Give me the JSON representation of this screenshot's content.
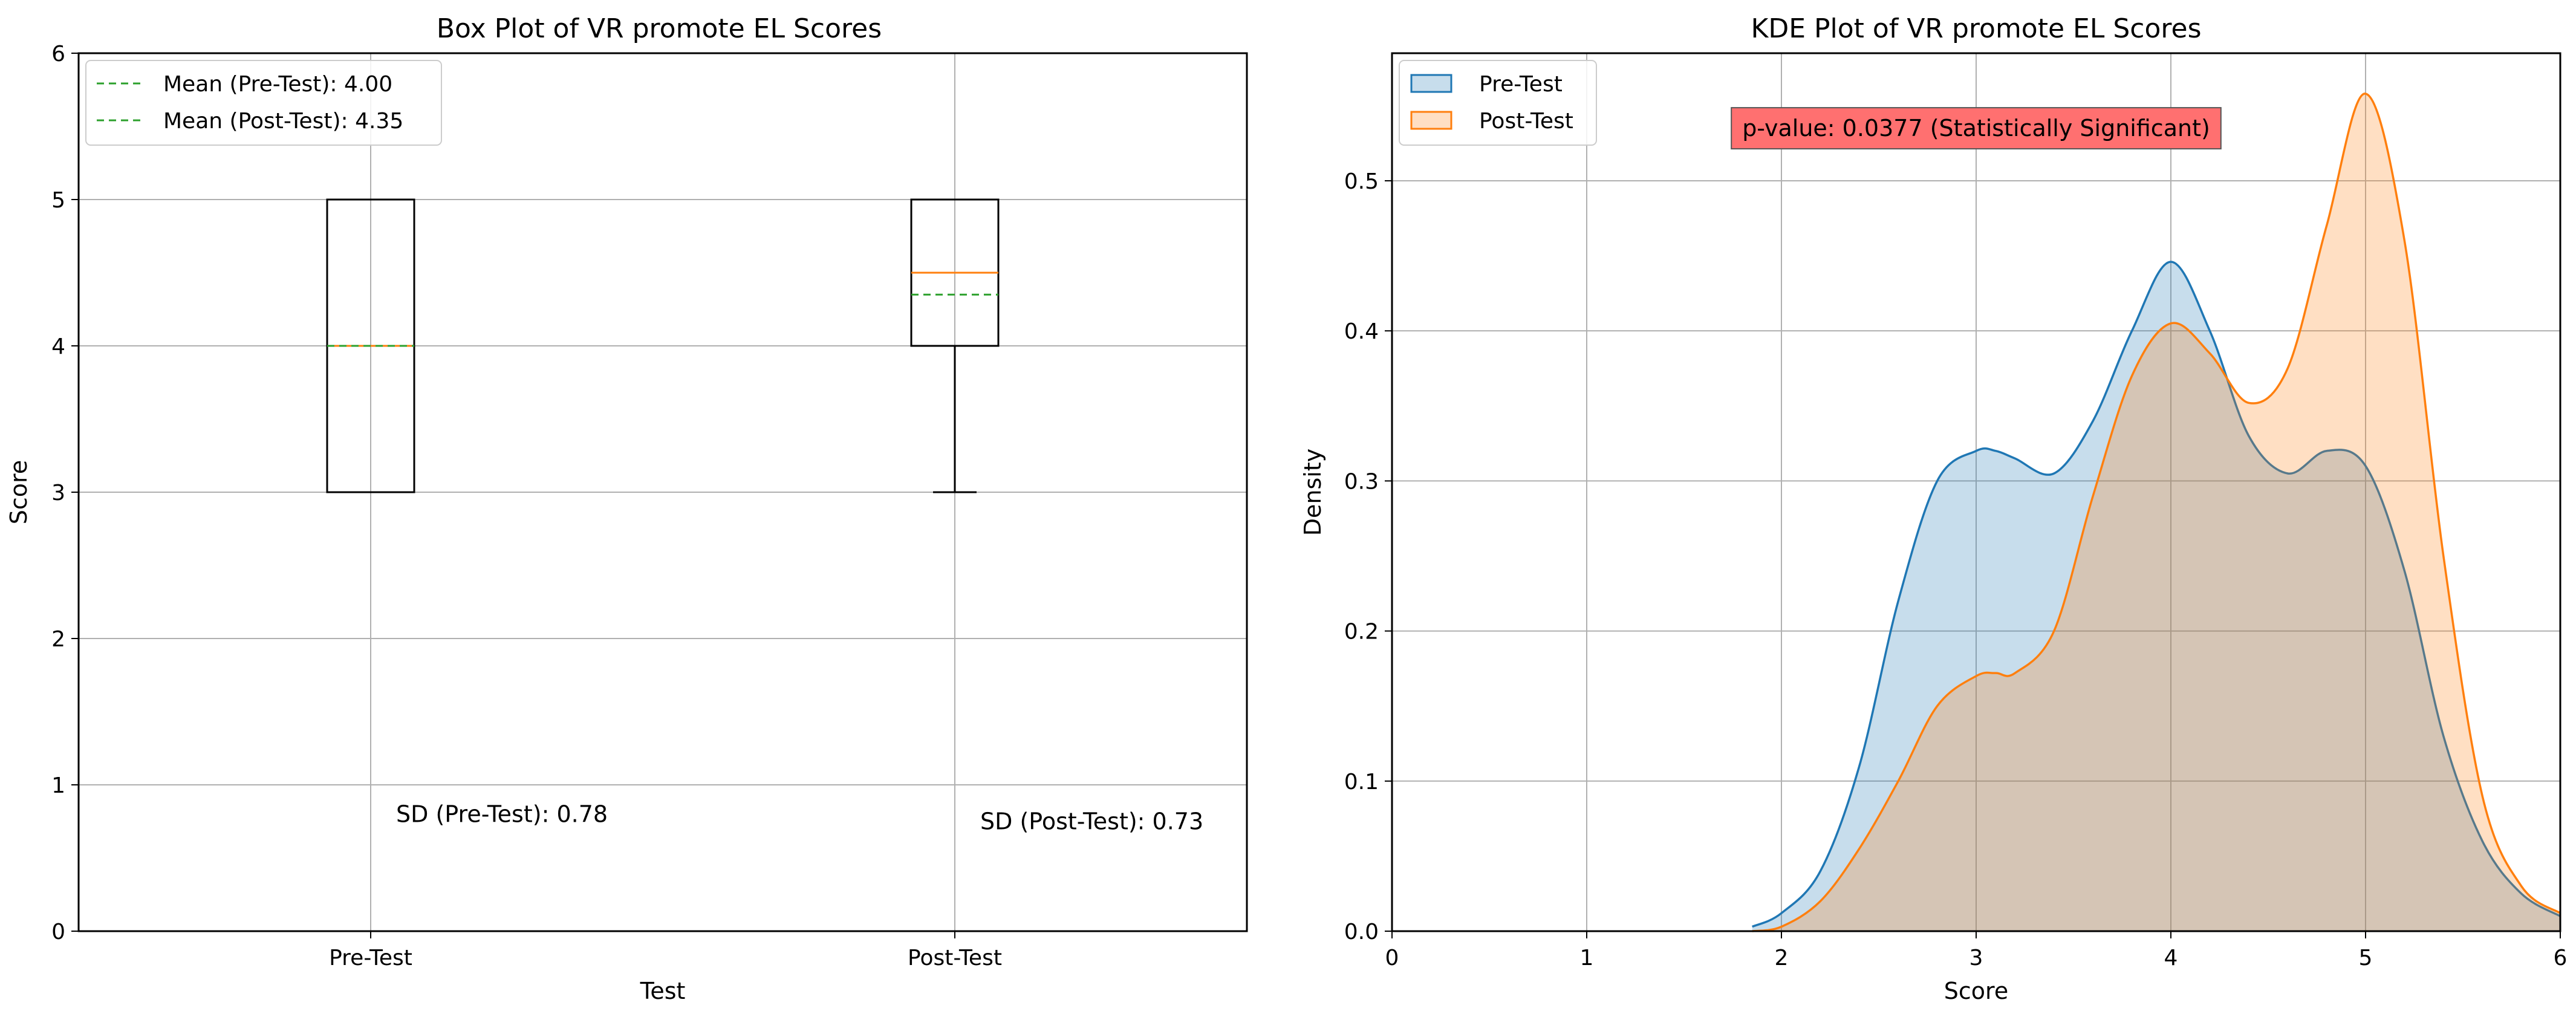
{
  "chart_data": [
    {
      "type": "box",
      "title": "Box Plot of VR promote EL Scores",
      "xlabel": "Test",
      "ylabel": "Score",
      "ylim": [
        0,
        6
      ],
      "yticks": [
        "0",
        "1",
        "2",
        "3",
        "4",
        "5",
        "6"
      ],
      "categories": [
        "Pre-Test",
        "Post-Test"
      ],
      "boxes": [
        {
          "name": "Pre-Test",
          "whisker_low": 3,
          "q1": 3,
          "median": 4,
          "q3": 5,
          "whisker_high": 5,
          "mean": 4.0
        },
        {
          "name": "Post-Test",
          "whisker_low": 3,
          "q1": 4,
          "median": 4.5,
          "q3": 5,
          "whisker_high": 5,
          "mean": 4.35
        }
      ],
      "legend": [
        "Mean (Pre-Test): 4.00",
        "Mean (Post-Test): 4.35"
      ],
      "annotations": [
        {
          "text": "SD (Pre-Test): 0.78",
          "x": 1,
          "y": 0.8
        },
        {
          "text": "SD (Post-Test): 0.73",
          "x": 2,
          "y": 0.75
        }
      ],
      "colors": {
        "box": "#000000",
        "median": "#ff7f0e",
        "mean": "#2ca02c",
        "grid": "#b0b0b0"
      }
    },
    {
      "type": "area",
      "title": "KDE Plot of VR promote EL Scores",
      "xlabel": "Score",
      "ylabel": "Density",
      "xlim": [
        0,
        6
      ],
      "ylim": [
        0,
        0.585
      ],
      "xticks": [
        "0",
        "1",
        "2",
        "3",
        "4",
        "5",
        "6"
      ],
      "yticks": [
        "0.0",
        "0.1",
        "0.2",
        "0.3",
        "0.4",
        "0.5"
      ],
      "x": [
        1.85,
        2.0,
        2.2,
        2.4,
        2.6,
        2.8,
        3.0,
        3.1,
        3.2,
        3.4,
        3.6,
        3.8,
        4.0,
        4.2,
        4.4,
        4.6,
        4.8,
        5.0,
        5.2,
        5.4,
        5.6,
        5.8,
        6.0
      ],
      "series": [
        {
          "name": "Pre-Test",
          "color": "#1f77b4",
          "values": [
            0.003,
            0.012,
            0.04,
            0.11,
            0.22,
            0.3,
            0.32,
            0.32,
            0.315,
            0.305,
            0.34,
            0.4,
            0.446,
            0.4,
            0.33,
            0.305,
            0.32,
            0.31,
            0.24,
            0.13,
            0.06,
            0.025,
            0.01
          ]
        },
        {
          "name": "Post-Test",
          "color": "#ff7f0e",
          "values": [
            0.0,
            0.003,
            0.02,
            0.055,
            0.1,
            0.15,
            0.17,
            0.172,
            0.172,
            0.2,
            0.29,
            0.37,
            0.405,
            0.385,
            0.352,
            0.375,
            0.47,
            0.558,
            0.46,
            0.25,
            0.09,
            0.03,
            0.012
          ]
        }
      ],
      "legend": [
        "Pre-Test",
        "Post-Test"
      ],
      "annotation": {
        "text": "p-value: 0.0377 (Statistically Significant)",
        "x": 3.0,
        "y": 0.535,
        "background": "#ff7070"
      },
      "colors": {
        "grid": "#b0b0b0"
      }
    }
  ]
}
